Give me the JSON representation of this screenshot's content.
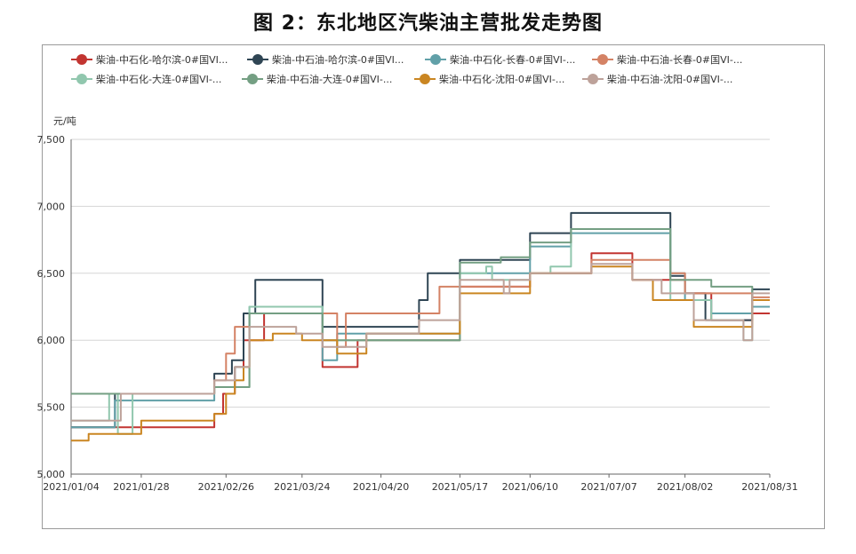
{
  "title": "图 2：东北地区汽柴油主营批发走势图",
  "chart_data": {
    "type": "line",
    "title": "图 2：东北地区汽柴油主营批发走势图",
    "ylabel": "元/吨",
    "ylim": [
      5000,
      7500
    ],
    "yticks": [
      "5,000",
      "5,500",
      "6,000",
      "6,500",
      "7,000",
      "7,500"
    ],
    "yticks_values": [
      5000,
      5500,
      6000,
      6500,
      7000,
      7500
    ],
    "xticks": [
      "2021/01/04",
      "2021/01/28",
      "2021/02/26",
      "2021/03/24",
      "2021/04/20",
      "2021/05/17",
      "2021/06/10",
      "2021/07/07",
      "2021/08/02",
      "2021/08/31"
    ],
    "grid": true,
    "legend_position": "top",
    "series": [
      {
        "name": "柴油-中石化-哈尔滨-0#国VI...",
        "color": "#c23531",
        "points": [
          [
            "2021/01/04",
            5350
          ],
          [
            "2021/02/22",
            5350
          ],
          [
            "2021/02/22",
            5450
          ],
          [
            "2021/02/25",
            5450
          ],
          [
            "2021/02/25",
            5600
          ],
          [
            "2021/03/01",
            5600
          ],
          [
            "2021/03/01",
            5800
          ],
          [
            "2021/03/04",
            5800
          ],
          [
            "2021/03/04",
            6000
          ],
          [
            "2021/03/11",
            6000
          ],
          [
            "2021/03/11",
            6200
          ],
          [
            "2021/03/31",
            6200
          ],
          [
            "2021/03/31",
            5800
          ],
          [
            "2021/04/12",
            5800
          ],
          [
            "2021/04/12",
            6000
          ],
          [
            "2021/05/17",
            6000
          ],
          [
            "2021/05/17",
            6400
          ],
          [
            "2021/06/10",
            6400
          ],
          [
            "2021/06/10",
            6500
          ],
          [
            "2021/07/01",
            6500
          ],
          [
            "2021/07/01",
            6650
          ],
          [
            "2021/07/15",
            6650
          ],
          [
            "2021/07/15",
            6450
          ],
          [
            "2021/08/02",
            6450
          ],
          [
            "2021/08/02",
            6350
          ],
          [
            "2021/08/11",
            6350
          ],
          [
            "2021/08/11",
            6150
          ],
          [
            "2021/08/25",
            6150
          ],
          [
            "2021/08/25",
            6200
          ],
          [
            "2021/08/31",
            6200
          ]
        ]
      },
      {
        "name": "柴油-中石油-哈尔滨-0#国VI...",
        "color": "#2f4554",
        "points": [
          [
            "2021/01/04",
            5350
          ],
          [
            "2021/01/19",
            5350
          ],
          [
            "2021/01/19",
            5600
          ],
          [
            "2021/02/22",
            5600
          ],
          [
            "2021/02/22",
            5750
          ],
          [
            "2021/02/28",
            5750
          ],
          [
            "2021/02/28",
            5850
          ],
          [
            "2021/03/04",
            5850
          ],
          [
            "2021/03/04",
            6200
          ],
          [
            "2021/03/08",
            6200
          ],
          [
            "2021/03/08",
            6450
          ],
          [
            "2021/03/31",
            6450
          ],
          [
            "2021/03/31",
            6100
          ],
          [
            "2021/05/03",
            6100
          ],
          [
            "2021/05/03",
            6300
          ],
          [
            "2021/05/06",
            6300
          ],
          [
            "2021/05/06",
            6500
          ],
          [
            "2021/05/17",
            6500
          ],
          [
            "2021/05/17",
            6600
          ],
          [
            "2021/06/10",
            6600
          ],
          [
            "2021/06/10",
            6800
          ],
          [
            "2021/06/24",
            6800
          ],
          [
            "2021/06/24",
            6950
          ],
          [
            "2021/07/28",
            6950
          ],
          [
            "2021/07/28",
            6480
          ],
          [
            "2021/08/02",
            6480
          ],
          [
            "2021/08/02",
            6350
          ],
          [
            "2021/08/09",
            6350
          ],
          [
            "2021/08/09",
            6150
          ],
          [
            "2021/08/25",
            6150
          ],
          [
            "2021/08/25",
            6380
          ],
          [
            "2021/08/31",
            6380
          ]
        ]
      },
      {
        "name": "柴油-中石化-长春-0#国VI-...",
        "color": "#61a0a8",
        "points": [
          [
            "2021/01/04",
            5350
          ],
          [
            "2021/01/19",
            5350
          ],
          [
            "2021/01/19",
            5550
          ],
          [
            "2021/02/22",
            5550
          ],
          [
            "2021/02/22",
            5650
          ],
          [
            "2021/03/01",
            5650
          ],
          [
            "2021/03/01",
            5800
          ],
          [
            "2021/03/06",
            5800
          ],
          [
            "2021/03/06",
            6250
          ],
          [
            "2021/03/31",
            6250
          ],
          [
            "2021/03/31",
            5850
          ],
          [
            "2021/04/05",
            5850
          ],
          [
            "2021/04/05",
            6050
          ],
          [
            "2021/05/17",
            6050
          ],
          [
            "2021/05/17",
            6500
          ],
          [
            "2021/06/10",
            6500
          ],
          [
            "2021/06/10",
            6700
          ],
          [
            "2021/06/24",
            6700
          ],
          [
            "2021/06/24",
            6800
          ],
          [
            "2021/07/28",
            6800
          ],
          [
            "2021/07/28",
            6500
          ],
          [
            "2021/08/02",
            6500
          ],
          [
            "2021/08/02",
            6300
          ],
          [
            "2021/08/11",
            6300
          ],
          [
            "2021/08/11",
            6200
          ],
          [
            "2021/08/25",
            6200
          ],
          [
            "2021/08/25",
            6250
          ],
          [
            "2021/08/31",
            6250
          ]
        ]
      },
      {
        "name": "柴油-中石油-长春-0#国VI-...",
        "color": "#d48265",
        "points": [
          [
            "2021/01/04",
            5600
          ],
          [
            "2021/02/22",
            5600
          ],
          [
            "2021/02/22",
            5700
          ],
          [
            "2021/02/26",
            5700
          ],
          [
            "2021/02/26",
            5900
          ],
          [
            "2021/03/01",
            5900
          ],
          [
            "2021/03/01",
            6100
          ],
          [
            "2021/03/06",
            6100
          ],
          [
            "2021/03/06",
            6200
          ],
          [
            "2021/04/05",
            6200
          ],
          [
            "2021/04/05",
            5950
          ],
          [
            "2021/04/08",
            5950
          ],
          [
            "2021/04/08",
            6200
          ],
          [
            "2021/05/10",
            6200
          ],
          [
            "2021/05/10",
            6400
          ],
          [
            "2021/06/10",
            6400
          ],
          [
            "2021/06/10",
            6500
          ],
          [
            "2021/07/01",
            6500
          ],
          [
            "2021/07/01",
            6600
          ],
          [
            "2021/07/28",
            6600
          ],
          [
            "2021/07/28",
            6500
          ],
          [
            "2021/08/02",
            6500
          ],
          [
            "2021/08/02",
            6350
          ],
          [
            "2021/08/25",
            6350
          ],
          [
            "2021/08/25",
            6320
          ],
          [
            "2021/08/31",
            6320
          ]
        ]
      },
      {
        "name": "柴油-中石化-大连-0#国VI-...",
        "color": "#91c7ae",
        "points": [
          [
            "2021/01/04",
            5400
          ],
          [
            "2021/01/17",
            5400
          ],
          [
            "2021/01/17",
            5600
          ],
          [
            "2021/01/20",
            5600
          ],
          [
            "2021/01/20",
            5300
          ],
          [
            "2021/01/25",
            5300
          ],
          [
            "2021/01/25",
            5600
          ],
          [
            "2021/02/22",
            5600
          ],
          [
            "2021/02/22",
            5650
          ],
          [
            "2021/03/06",
            5650
          ],
          [
            "2021/03/06",
            6250
          ],
          [
            "2021/03/31",
            6250
          ],
          [
            "2021/03/31",
            6000
          ],
          [
            "2021/05/17",
            6000
          ],
          [
            "2021/05/17",
            6500
          ],
          [
            "2021/05/26",
            6500
          ],
          [
            "2021/05/26",
            6550
          ],
          [
            "2021/05/28",
            6550
          ],
          [
            "2021/05/28",
            6450
          ],
          [
            "2021/06/10",
            6450
          ],
          [
            "2021/06/10",
            6500
          ],
          [
            "2021/06/17",
            6500
          ],
          [
            "2021/06/17",
            6550
          ],
          [
            "2021/06/24",
            6550
          ],
          [
            "2021/06/24",
            6830
          ],
          [
            "2021/07/28",
            6830
          ],
          [
            "2021/07/28",
            6300
          ],
          [
            "2021/08/11",
            6300
          ],
          [
            "2021/08/11",
            6150
          ],
          [
            "2021/08/22",
            6150
          ],
          [
            "2021/08/22",
            6000
          ],
          [
            "2021/08/25",
            6000
          ],
          [
            "2021/08/25",
            6300
          ],
          [
            "2021/08/31",
            6300
          ]
        ]
      },
      {
        "name": "柴油-中石油-大连-0#国VI-...",
        "color": "#749f83",
        "points": [
          [
            "2021/01/04",
            5600
          ],
          [
            "2021/02/22",
            5600
          ],
          [
            "2021/02/22",
            5650
          ],
          [
            "2021/03/06",
            5650
          ],
          [
            "2021/03/06",
            6200
          ],
          [
            "2021/03/31",
            6200
          ],
          [
            "2021/03/31",
            6000
          ],
          [
            "2021/05/17",
            6000
          ],
          [
            "2021/05/17",
            6580
          ],
          [
            "2021/05/31",
            6580
          ],
          [
            "2021/05/31",
            6620
          ],
          [
            "2021/06/10",
            6620
          ],
          [
            "2021/06/10",
            6730
          ],
          [
            "2021/06/24",
            6730
          ],
          [
            "2021/06/24",
            6830
          ],
          [
            "2021/07/28",
            6830
          ],
          [
            "2021/07/28",
            6450
          ],
          [
            "2021/08/11",
            6450
          ],
          [
            "2021/08/11",
            6400
          ],
          [
            "2021/08/25",
            6400
          ],
          [
            "2021/08/25",
            6300
          ],
          [
            "2021/08/31",
            6300
          ]
        ]
      },
      {
        "name": "柴油-中石化-沈阳-0#国VI-...",
        "color": "#ca8622",
        "points": [
          [
            "2021/01/04",
            5250
          ],
          [
            "2021/01/10",
            5250
          ],
          [
            "2021/01/10",
            5300
          ],
          [
            "2021/01/28",
            5300
          ],
          [
            "2021/01/28",
            5400
          ],
          [
            "2021/02/22",
            5400
          ],
          [
            "2021/02/22",
            5450
          ],
          [
            "2021/02/26",
            5450
          ],
          [
            "2021/02/26",
            5600
          ],
          [
            "2021/03/01",
            5600
          ],
          [
            "2021/03/01",
            5700
          ],
          [
            "2021/03/04",
            5700
          ],
          [
            "2021/03/04",
            5800
          ],
          [
            "2021/03/06",
            5800
          ],
          [
            "2021/03/06",
            6000
          ],
          [
            "2021/03/14",
            6000
          ],
          [
            "2021/03/14",
            6050
          ],
          [
            "2021/03/24",
            6050
          ],
          [
            "2021/03/24",
            6000
          ],
          [
            "2021/04/05",
            6000
          ],
          [
            "2021/04/05",
            5900
          ],
          [
            "2021/04/15",
            5900
          ],
          [
            "2021/04/15",
            6050
          ],
          [
            "2021/05/17",
            6050
          ],
          [
            "2021/05/17",
            6350
          ],
          [
            "2021/06/10",
            6350
          ],
          [
            "2021/06/10",
            6500
          ],
          [
            "2021/07/01",
            6500
          ],
          [
            "2021/07/01",
            6550
          ],
          [
            "2021/07/15",
            6550
          ],
          [
            "2021/07/15",
            6450
          ],
          [
            "2021/07/22",
            6450
          ],
          [
            "2021/07/22",
            6300
          ],
          [
            "2021/08/05",
            6300
          ],
          [
            "2021/08/05",
            6100
          ],
          [
            "2021/08/25",
            6100
          ],
          [
            "2021/08/25",
            6300
          ],
          [
            "2021/08/31",
            6300
          ]
        ]
      },
      {
        "name": "柴油-中石油-沈阳-0#国VI-...",
        "color": "#bda29a",
        "points": [
          [
            "2021/01/04",
            5400
          ],
          [
            "2021/01/21",
            5400
          ],
          [
            "2021/01/21",
            5600
          ],
          [
            "2021/02/22",
            5600
          ],
          [
            "2021/02/22",
            5700
          ],
          [
            "2021/03/01",
            5700
          ],
          [
            "2021/03/01",
            5800
          ],
          [
            "2021/03/06",
            5800
          ],
          [
            "2021/03/06",
            6100
          ],
          [
            "2021/03/22",
            6100
          ],
          [
            "2021/03/22",
            6050
          ],
          [
            "2021/03/31",
            6050
          ],
          [
            "2021/03/31",
            5950
          ],
          [
            "2021/04/15",
            5950
          ],
          [
            "2021/04/15",
            6050
          ],
          [
            "2021/05/03",
            6050
          ],
          [
            "2021/05/03",
            6150
          ],
          [
            "2021/05/17",
            6150
          ],
          [
            "2021/05/17",
            6450
          ],
          [
            "2021/06/01",
            6450
          ],
          [
            "2021/06/01",
            6350
          ],
          [
            "2021/06/03",
            6350
          ],
          [
            "2021/06/03",
            6450
          ],
          [
            "2021/06/10",
            6450
          ],
          [
            "2021/06/10",
            6500
          ],
          [
            "2021/07/01",
            6500
          ],
          [
            "2021/07/01",
            6570
          ],
          [
            "2021/07/15",
            6570
          ],
          [
            "2021/07/15",
            6450
          ],
          [
            "2021/07/25",
            6450
          ],
          [
            "2021/07/25",
            6350
          ],
          [
            "2021/08/05",
            6350
          ],
          [
            "2021/08/05",
            6150
          ],
          [
            "2021/08/22",
            6150
          ],
          [
            "2021/08/22",
            6000
          ],
          [
            "2021/08/25",
            6000
          ],
          [
            "2021/08/25",
            6350
          ],
          [
            "2021/08/31",
            6350
          ]
        ]
      }
    ]
  }
}
